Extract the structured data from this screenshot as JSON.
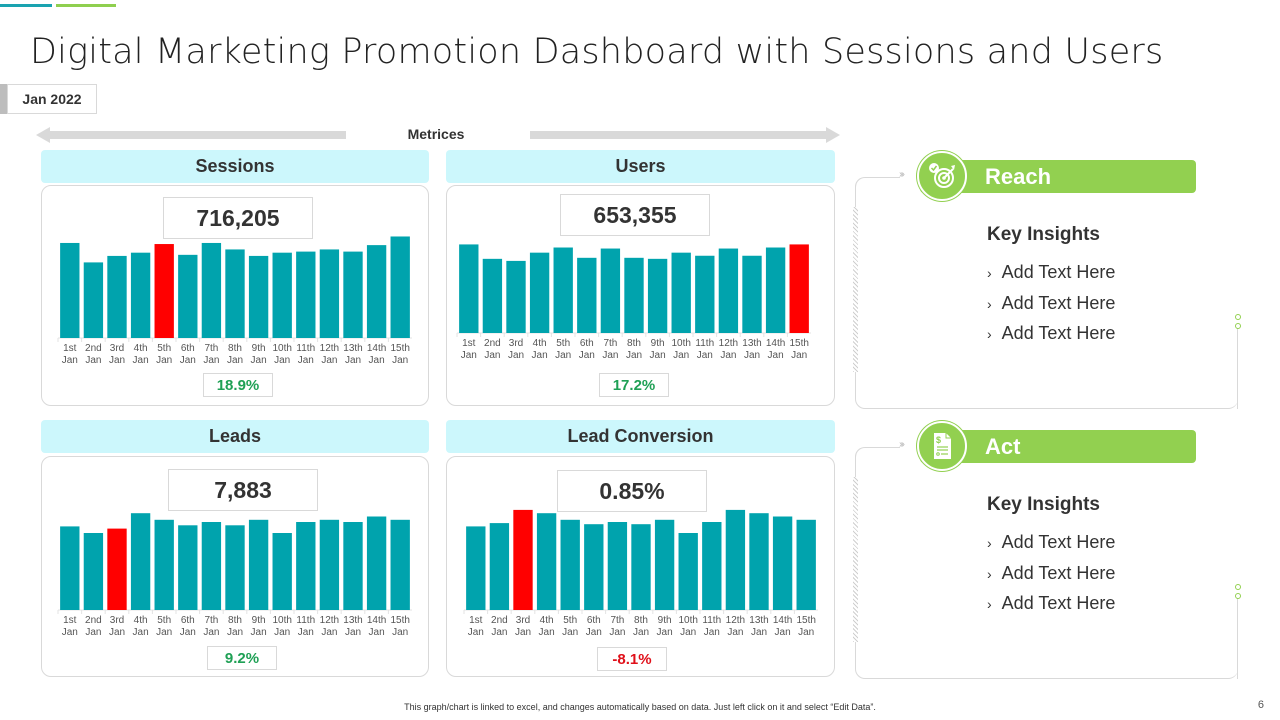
{
  "title": "Digital Marketing Promotion Dashboard with Sessions and Users",
  "date_label": "Jan 2022",
  "metrices_label": "Metrices",
  "colors": {
    "bar": "#00a3ad",
    "highlight": "#ff0000",
    "positive": "#1fa055",
    "negative": "#e0101a",
    "header_bg": "#ccf7fc",
    "accent_green": "#92d050"
  },
  "chart_data": [
    {
      "type": "bar",
      "title": "Sessions",
      "total": "716,205",
      "change": "18.9%",
      "change_direction": "positive",
      "categories": [
        "1st Jan",
        "2nd Jan",
        "3rd Jan",
        "4th Jan",
        "5th Jan",
        "6th Jan",
        "7th Jan",
        "8th Jan",
        "9th Jan",
        "10th Jan",
        "11th Jan",
        "12th Jan",
        "13th Jan",
        "14th Jan",
        "15th Jan"
      ],
      "values": [
        88,
        70,
        76,
        79,
        87,
        77,
        88,
        82,
        76,
        79,
        80,
        82,
        80,
        86,
        94
      ],
      "highlight_index": 4,
      "ylim": [
        0,
        100
      ],
      "xlabel": "",
      "ylabel": "",
      "grid": false
    },
    {
      "type": "bar",
      "title": "Users",
      "total": "653,355",
      "change": "17.2%",
      "change_direction": "positive",
      "categories": [
        "1st Jan",
        "2nd Jan",
        "3rd Jan",
        "4th Jan",
        "5th Jan",
        "6th Jan",
        "7th Jan",
        "8th Jan",
        "9th Jan",
        "10th Jan",
        "11th Jan",
        "12th Jan",
        "13th Jan",
        "14th Jan",
        "15th Jan"
      ],
      "values": [
        86,
        72,
        70,
        78,
        83,
        73,
        82,
        73,
        72,
        78,
        75,
        82,
        75,
        83,
        86
      ],
      "highlight_index": 14,
      "ylim": [
        0,
        100
      ],
      "xlabel": "",
      "ylabel": "",
      "grid": false
    },
    {
      "type": "bar",
      "title": "Leads",
      "total": "7,883",
      "change": "9.2%",
      "change_direction": "positive",
      "categories": [
        "1st Jan",
        "2nd Jan",
        "3rd Jan",
        "4th Jan",
        "5th Jan",
        "6th Jan",
        "7th Jan",
        "8th Jan",
        "9th Jan",
        "10th Jan",
        "11th Jan",
        "12th Jan",
        "13th Jan",
        "14th Jan",
        "15th Jan"
      ],
      "values": [
        76,
        70,
        74,
        88,
        82,
        77,
        80,
        77,
        82,
        70,
        80,
        82,
        80,
        85,
        82
      ],
      "highlight_index": 2,
      "ylim": [
        0,
        100
      ],
      "xlabel": "",
      "ylabel": "",
      "grid": false
    },
    {
      "type": "bar",
      "title": "Lead Conversion",
      "total": "0.85%",
      "change": "-8.1%",
      "change_direction": "negative",
      "categories": [
        "1st Jan",
        "2nd Jan",
        "3rd Jan",
        "4th Jan",
        "5th Jan",
        "6th Jan",
        "7th Jan",
        "8th Jan",
        "9th Jan",
        "10th Jan",
        "11th Jan",
        "12th Jan",
        "13th Jan",
        "14th Jan",
        "15th Jan"
      ],
      "values": [
        76,
        79,
        91,
        88,
        82,
        78,
        80,
        78,
        82,
        70,
        80,
        91,
        88,
        85,
        82
      ],
      "highlight_index": 2,
      "ylim": [
        0,
        100
      ],
      "xlabel": "",
      "ylabel": "",
      "grid": false
    }
  ],
  "side_panels": [
    {
      "title": "Reach",
      "icon": "target-check-icon",
      "insights_title": "Key Insights",
      "items": [
        "Add Text Here",
        "Add Text Here",
        "Add Text Here"
      ]
    },
    {
      "title": "Act",
      "icon": "invoice-document-icon",
      "insights_title": "Key Insights",
      "items": [
        "Add Text Here",
        "Add Text Here",
        "Add Text Here"
      ]
    }
  ],
  "footer_note": "This graph/chart is linked to excel, and changes automatically based on data. Just left click on it and select “Edit Data”.",
  "page_number": "6"
}
